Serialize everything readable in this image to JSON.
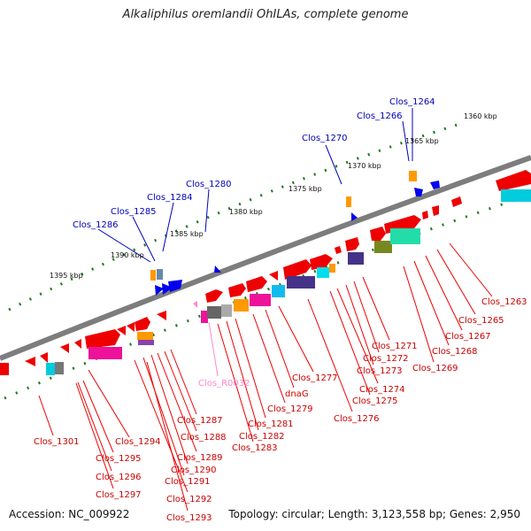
{
  "title": "Alkaliphilus oremlandii OhILAs, complete genome",
  "footer": {
    "accession": "Accession: NC_009922",
    "topology": "Topology: circular; Length: 3,123,558 bp; Genes: 2,950"
  },
  "colors": {
    "backbone": "#7d7d7d",
    "kbp_tick": "#1f7a1f",
    "cds": "#ee0000",
    "blue_gene": "#0000ee",
    "rna_gene": "#ff88cc",
    "label_red": "#cc0000",
    "label_blue": "#0000bb",
    "label_pink": "#ff88cc"
  },
  "kbp_marks": [
    "1360 kbp",
    "1365 kbp",
    "1370 kbp",
    "1375 kbp",
    "1380 kbp",
    "1385 kbp",
    "1390 kbp",
    "1395 kbp"
  ],
  "upper_labels": [
    "Clos_1264",
    "Clos_1266",
    "Clos_1270",
    "Clos_1280",
    "Clos_1284",
    "Clos_1285",
    "Clos_1286"
  ],
  "lower_labels_right": [
    "Clos_1263",
    "Clos_1265",
    "Clos_1267",
    "Clos_1268",
    "Clos_1269",
    "Clos_1271",
    "Clos_1272",
    "Clos_1273",
    "Clos_1274",
    "Clos_1275",
    "Clos_1276",
    "Clos_1277",
    "dnaG",
    "Clos_1279",
    "Clos_1281",
    "Clos_1282",
    "Clos_1283",
    "Clos_R0032"
  ],
  "lower_labels_left": [
    "Clos_1287",
    "Clos_1288",
    "Clos_1289",
    "Clos_1290",
    "Clos_1291",
    "Clos_1292",
    "Clos_1293",
    "Clos_1294",
    "Clos_1295",
    "Clos_1296",
    "Clos_1297",
    "Clos_1301"
  ]
}
